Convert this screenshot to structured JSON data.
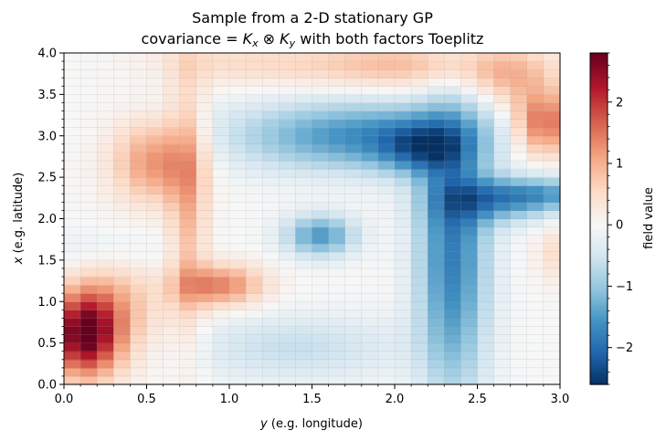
{
  "chart_data": {
    "type": "heatmap",
    "title_line1": "Sample from a 2-D stationary GP",
    "title_line2_prefix": "covariance = ",
    "title_line2_math": "K",
    "title_line2_sub_x": "x",
    "title_line2_otimes": " ⊗ ",
    "title_line2_sub_y": "y",
    "title_line2_suffix": " with both factors Toeplitz",
    "xlabel_var": "y",
    "xlabel_rest": " (e.g. longitude)",
    "ylabel_var": "x",
    "ylabel_rest": " (e.g. latitude)",
    "colorbar_label": "field value",
    "x_range": [
      0,
      3
    ],
    "y_range": [
      0,
      4
    ],
    "colormap": "RdBu_r",
    "vmin": -2.6,
    "vmax": 2.8,
    "x_ticks": [
      0.0,
      0.5,
      1.0,
      1.5,
      2.0,
      2.5,
      3.0
    ],
    "x_tick_labels": [
      "0.0",
      "0.5",
      "1.0",
      "1.5",
      "2.0",
      "2.5",
      "3.0"
    ],
    "y_ticks": [
      0.0,
      0.5,
      1.0,
      1.5,
      2.0,
      2.5,
      3.0,
      3.5,
      4.0
    ],
    "y_tick_labels": [
      "0.0",
      "0.5",
      "1.0",
      "1.5",
      "2.0",
      "2.5",
      "3.0",
      "3.5",
      "4.0"
    ],
    "colorbar_ticks": [
      -2,
      -1,
      0,
      1,
      2
    ],
    "colorbar_tick_labels": [
      "−2",
      "−1",
      "0",
      "1",
      "2"
    ],
    "grid_cols": 30,
    "grid_rows": 40,
    "field_components": [
      {
        "y": 0.12,
        "x": 0.6,
        "sy": 0.14,
        "sx": 0.35,
        "a": 2.6
      },
      {
        "y": 0.3,
        "x": 0.9,
        "sy": 0.2,
        "sx": 0.45,
        "a": 0.9
      },
      {
        "y": 0.55,
        "x": 2.7,
        "sy": 0.18,
        "sx": 0.35,
        "a": 1.3
      },
      {
        "y": 0.75,
        "x": 2.2,
        "sy": 0.08,
        "sx": 1.2,
        "a": 0.9
      },
      {
        "y": 0.95,
        "x": 1.2,
        "sy": 0.18,
        "sx": 0.18,
        "a": 1.4
      },
      {
        "y": 1.0,
        "x": 3.9,
        "sy": 0.35,
        "sx": 0.2,
        "a": 0.4
      },
      {
        "y": 2.05,
        "x": 3.85,
        "sy": 0.5,
        "sx": 0.2,
        "a": 0.9
      },
      {
        "y": 2.9,
        "x": 3.15,
        "sy": 0.13,
        "sx": 0.28,
        "a": 1.7
      },
      {
        "y": 2.7,
        "x": 3.7,
        "sy": 0.18,
        "sx": 0.25,
        "a": 0.7
      },
      {
        "y": 3.0,
        "x": 1.6,
        "sy": 0.1,
        "sx": 0.25,
        "a": 0.5
      },
      {
        "y": 0.25,
        "x": 1.6,
        "sy": 0.35,
        "sx": 0.2,
        "a": -0.3
      },
      {
        "y": 1.4,
        "x": 0.45,
        "sy": 0.45,
        "sx": 0.28,
        "a": -0.6
      },
      {
        "y": 1.8,
        "x": 3.0,
        "sy": 0.55,
        "sx": 0.3,
        "a": -1.6
      },
      {
        "y": 2.15,
        "x": 2.85,
        "sy": 0.18,
        "sx": 0.22,
        "a": -1.1
      },
      {
        "y": 1.55,
        "x": 1.8,
        "sy": 0.15,
        "sx": 0.18,
        "a": -1.5
      },
      {
        "y": 2.35,
        "x": 1.6,
        "sy": 0.15,
        "sx": 1.2,
        "a": -1.8
      },
      {
        "y": 2.6,
        "x": 2.2,
        "sy": 0.25,
        "sx": 0.2,
        "a": -1.0
      },
      {
        "y": 2.9,
        "x": 2.3,
        "sy": 0.3,
        "sx": 0.15,
        "a": -1.2
      }
    ]
  }
}
